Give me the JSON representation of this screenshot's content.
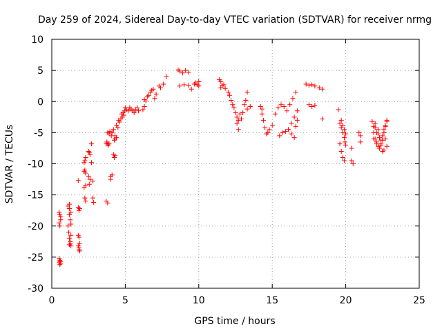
{
  "chart_data": {
    "type": "scatter",
    "title": "Day 259 of 2024, Sidereal Day-to-day VTEC variation (SDTVAR) for receiver nrmg",
    "xlabel": "GPS time / hours",
    "ylabel": "SDTVAR / TECUs",
    "xlim": [
      0,
      25
    ],
    "ylim": [
      -30,
      10
    ],
    "xticks": [
      "0",
      "5",
      "10",
      "15",
      "20",
      "25"
    ],
    "yticks": [
      "10",
      "5",
      "0",
      "-5",
      "-10",
      "-15",
      "-20",
      "-25",
      "-30"
    ],
    "grid": true,
    "marker": "+",
    "color": "#ff0000",
    "series": [
      {
        "name": "SDTVAR",
        "x": [
          0.5,
          0.5,
          0.55,
          0.55,
          0.6,
          0.6,
          0.5,
          0.55,
          0.6,
          0.5,
          0.55,
          0.6,
          1.1,
          1.2,
          1.2,
          1.25,
          1.3,
          1.15,
          1.2,
          1.25,
          1.3,
          1.1,
          1.2,
          1.3,
          1.2,
          1.25,
          1.3,
          1.8,
          1.8,
          1.85,
          1.9,
          1.8,
          1.85,
          1.8,
          1.85,
          1.9,
          1.85,
          1.9,
          2.2,
          2.25,
          2.3,
          2.2,
          2.25,
          2.3,
          2.2,
          2.3,
          2.25,
          2.3,
          2.5,
          2.55,
          2.6,
          2.5,
          2.6,
          2.55,
          2.7,
          2.7,
          2.8,
          2.8,
          2.85,
          3.7,
          3.75,
          3.8,
          3.85,
          3.7,
          3.8,
          3.8,
          3.9,
          3.9,
          4.0,
          4.0,
          4.1,
          3.95,
          4.05,
          4.1,
          4.2,
          4.25,
          4.3,
          4.25,
          4.3,
          4.2,
          4.3,
          4.4,
          4.4,
          4.5,
          4.55,
          4.6,
          4.7,
          4.75,
          4.8,
          4.85,
          4.9,
          4.95,
          5.0,
          5.1,
          5.2,
          5.3,
          5.4,
          5.5,
          5.6,
          5.7,
          5.8,
          5.9,
          6.2,
          6.3,
          6.3,
          6.4,
          6.5,
          6.6,
          6.7,
          6.8,
          6.9,
          7.0,
          7.1,
          7.3,
          7.4,
          7.6,
          7.8,
          8.6,
          8.7,
          8.9,
          9.1,
          9.3,
          8.7,
          9.0,
          9.3,
          9.5,
          9.7,
          9.8,
          9.9,
          10.0,
          10.0,
          11.4,
          11.5,
          11.6,
          11.5,
          11.7,
          11.8,
          12.0,
          12.1,
          12.2,
          12.3,
          12.4,
          12.5,
          12.6,
          12.7,
          12.6,
          12.7,
          12.8,
          12.9,
          13.0,
          13.1,
          13.2,
          13.3,
          13.3,
          13.5,
          14.2,
          14.3,
          14.3,
          14.4,
          14.5,
          14.6,
          14.7,
          14.8,
          15.0,
          15.2,
          15.4,
          15.6,
          15.8,
          16.0,
          16.1,
          16.3,
          16.5,
          16.6,
          16.7,
          15.5,
          15.7,
          15.9,
          16.1,
          16.3,
          16.5,
          16.7,
          16.2,
          16.4,
          16.6,
          17.3,
          17.5,
          17.7,
          17.9,
          17.5,
          17.7,
          17.9,
          18.2,
          18.4,
          18.4,
          19.5,
          19.6,
          19.7,
          19.8,
          19.9,
          19.95,
          20.0,
          19.6,
          19.7,
          19.8,
          19.9,
          19.7,
          19.8,
          19.9,
          20.0,
          20.4,
          20.4,
          20.5,
          20.9,
          21.0,
          21.0,
          21.8,
          21.9,
          22.0,
          22.1,
          22.2,
          22.3,
          22.4,
          22.5,
          22.6,
          22.7,
          22.8,
          21.9,
          22.0,
          22.1,
          22.2,
          22.3,
          22.4,
          22.5,
          22.6,
          22.7,
          22.8,
          22.0,
          22.2,
          22.4,
          22.6,
          22.8,
          21.9,
          22.1,
          22.3,
          22.5,
          22.7
        ],
        "y": [
          -25.2,
          -25.8,
          -26.2,
          -25.5,
          -26.0,
          -25.7,
          -17.8,
          -18.2,
          -19.0,
          -19.5,
          -20.0,
          -18.5,
          -16.8,
          -17.2,
          -18.2,
          -19.0,
          -19.7,
          -21.0,
          -22.0,
          -22.5,
          -23.2,
          -20.0,
          -16.5,
          -17.8,
          -23.0,
          -22.8,
          -21.5,
          -12.7,
          -17.0,
          -17.5,
          -17.2,
          -21.5,
          -21.8,
          -23.2,
          -23.8,
          -24.0,
          -23.5,
          -22.8,
          -9.8,
          -9.5,
          -9.0,
          -11.2,
          -11.0,
          -11.5,
          -13.8,
          -13.5,
          -15.5,
          -16.0,
          -8.0,
          -8.2,
          -8.5,
          -12.0,
          -12.5,
          -13.3,
          -6.8,
          -9.8,
          -12.8,
          -15.5,
          -16.2,
          -6.8,
          -6.5,
          -6.8,
          -7.0,
          -16.0,
          -16.3,
          -5.0,
          -5.2,
          -6.8,
          -12.5,
          -12.0,
          -11.8,
          -4.8,
          -5.5,
          -5.0,
          -8.5,
          -9.0,
          -8.7,
          -6.2,
          -6.0,
          -4.5,
          -5.5,
          -5.8,
          -3.8,
          -4.2,
          -3.0,
          -3.3,
          -2.8,
          -2.0,
          -2.5,
          -1.8,
          -2.2,
          -1.5,
          -1.0,
          -1.3,
          -1.5,
          -1.0,
          -1.2,
          -1.5,
          -1.8,
          -1.3,
          -1.0,
          -1.5,
          -1.3,
          -0.8,
          0.3,
          0.1,
          0.8,
          1.0,
          1.5,
          1.8,
          2.0,
          0.5,
          1.2,
          2.5,
          2.2,
          2.8,
          4.0,
          5.1,
          4.9,
          4.6,
          5.0,
          4.7,
          2.5,
          2.7,
          2.6,
          2.0,
          2.8,
          3.0,
          2.7,
          2.5,
          3.2,
          3.5,
          3.2,
          2.6,
          2.2,
          2.7,
          2.1,
          1.5,
          1.0,
          0.2,
          -0.5,
          -1.0,
          -1.8,
          -2.5,
          -3.0,
          -3.5,
          -4.5,
          -2.0,
          -2.8,
          -1.8,
          -0.5,
          0.2,
          1.5,
          -1.2,
          -0.8,
          -0.8,
          -1.2,
          -2.0,
          -3.0,
          -4.2,
          -5.2,
          -5.0,
          -4.5,
          -3.8,
          -2.0,
          -1.0,
          -0.5,
          -0.8,
          -1.5,
          -4.5,
          -5.2,
          -5.8,
          -4.0,
          -3.0,
          -5.5,
          -5.0,
          -4.8,
          -4.5,
          -3.5,
          -2.5,
          -1.5,
          -0.5,
          0.5,
          1.5,
          2.8,
          2.6,
          2.7,
          2.5,
          -0.5,
          -0.8,
          -0.6,
          2.2,
          2.0,
          -2.8,
          -1.3,
          -3.5,
          -4.2,
          -5.0,
          -5.8,
          -6.5,
          -7.0,
          -6.8,
          -8.0,
          -9.0,
          -9.5,
          -3.0,
          -3.8,
          -4.5,
          -5.2,
          -7.5,
          -9.5,
          -10.0,
          -5.0,
          -6.5,
          -5.5,
          -3.2,
          -4.0,
          -3.5,
          -5.0,
          -4.5,
          -5.8,
          -6.2,
          -5.5,
          -4.5,
          -3.8,
          -3.2,
          -5.0,
          -6.0,
          -6.8,
          -7.2,
          -7.5,
          -7.0,
          -6.2,
          -5.0,
          -4.0,
          -3.0,
          -4.2,
          -5.2,
          -6.8,
          -7.8,
          -7.2,
          -6.0,
          -6.5,
          -7.5,
          -8.0,
          -6.0
        ]
      }
    ]
  }
}
